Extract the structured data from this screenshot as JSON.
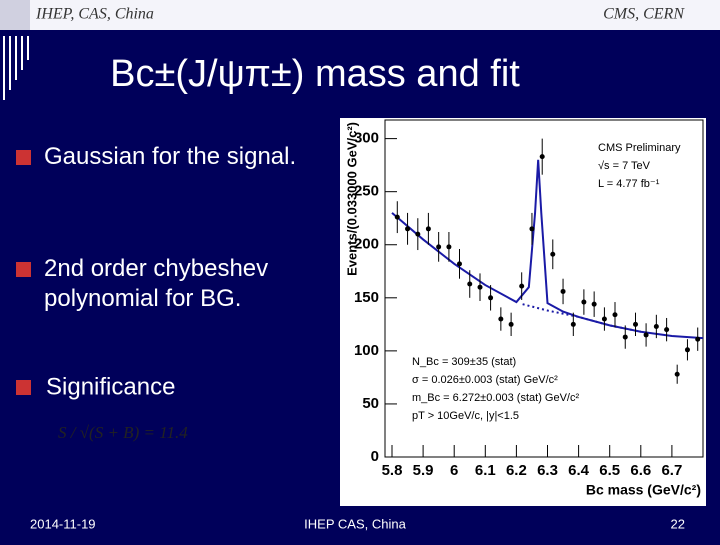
{
  "header": {
    "left": "IHEP, CAS, China",
    "right": "CMS, CERN"
  },
  "title": "Bc±(J/ψπ±) mass and fit",
  "bullets": [
    "Gaussian for the signal.",
    "2nd  order chybeshev polynomial for BG.",
    "Significance"
  ],
  "formula": "S / √(S + B) = 11.4",
  "chart": {
    "type": "scatter",
    "x_label": "Bc mass (GeV/c²)",
    "y_label": "Events/(0.033000 GeV/c²)",
    "annotations": [
      "CMS Preliminary",
      "√s = 7 TeV",
      "L = 4.77 fb⁻¹"
    ],
    "fit_results": [
      "N_Bc = 309±35 (stat)",
      "σ = 0.026±0.003 (stat) GeV/c²",
      "m_Bc = 6.272±0.003 (stat) GeV/c²",
      "pT > 10GeV/c, |y|<1.5"
    ],
    "xlim": [
      5.8,
      6.8
    ],
    "ylim": [
      0,
      310
    ],
    "xticks": [
      5.8,
      5.9,
      6,
      6.1,
      6.2,
      6.3,
      6.4,
      6.5,
      6.6,
      6.7
    ],
    "yticks": [
      0,
      50,
      100,
      150,
      200,
      250,
      300
    ],
    "x": [
      5.817,
      5.85,
      5.883,
      5.917,
      5.95,
      5.983,
      6.017,
      6.05,
      6.083,
      6.117,
      6.15,
      6.183,
      6.217,
      6.25,
      6.283,
      6.317,
      6.35,
      6.383,
      6.417,
      6.45,
      6.483,
      6.517,
      6.55,
      6.583,
      6.617,
      6.65,
      6.683,
      6.717,
      6.75,
      6.783
    ],
    "values": [
      226,
      215,
      210,
      215,
      198,
      198,
      182,
      163,
      160,
      150,
      130,
      125,
      161,
      215,
      283,
      191,
      156,
      125,
      146,
      144,
      130,
      134,
      113,
      125,
      115,
      123,
      120,
      78,
      101,
      111
    ],
    "errors": [
      15,
      15,
      15,
      15,
      14,
      14,
      14,
      13,
      13,
      12,
      11,
      11,
      13,
      15,
      17,
      14,
      12,
      11,
      12,
      12,
      11,
      12,
      11,
      11,
      11,
      11,
      11,
      9,
      10,
      11
    ],
    "color": "#000000",
    "fit": {
      "color": "#1a1aa6",
      "x": [
        5.8,
        5.9,
        6.0,
        6.1,
        6.2,
        6.24,
        6.26,
        6.27,
        6.28,
        6.3,
        6.35,
        6.4,
        6.5,
        6.6,
        6.7,
        6.8
      ],
      "y": [
        230,
        205,
        182,
        162,
        146,
        160,
        230,
        280,
        230,
        145,
        137,
        132,
        124,
        118,
        114,
        112
      ]
    },
    "background": {
      "color": "#1a1aa6",
      "x": [
        6.22,
        6.3,
        6.4,
        6.5,
        6.6
      ],
      "y": [
        144,
        138,
        132,
        124,
        118
      ]
    }
  },
  "footer": {
    "date": "2014-11-19",
    "center": "IHEP CAS, China",
    "page": "22"
  }
}
